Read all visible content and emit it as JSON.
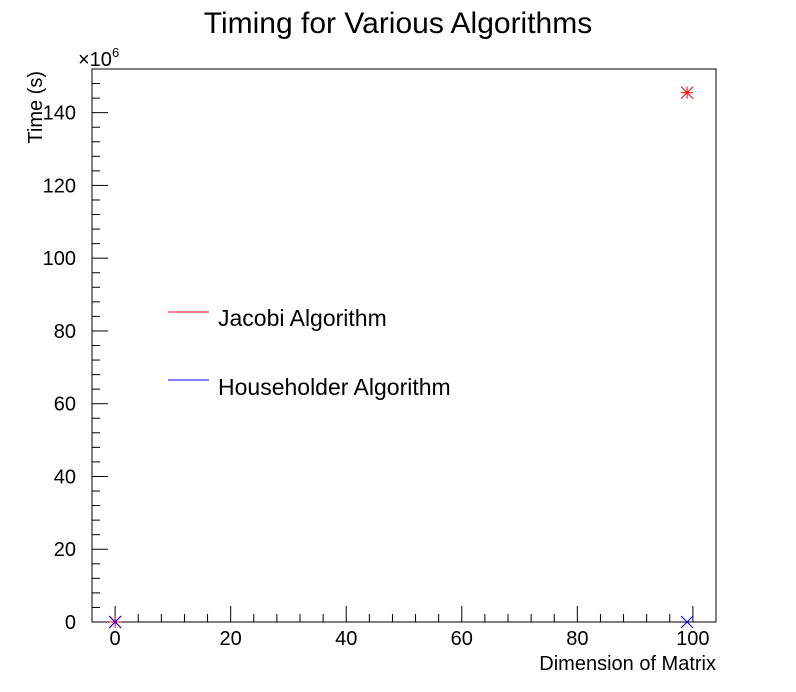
{
  "chart_data": {
    "type": "scatter",
    "title": "Timing for Various Algorithms",
    "xlabel": "Dimension of Matrix",
    "ylabel": "Time (s)",
    "y_exponent_base": "×10",
    "y_exponent_power": "6",
    "xlim": [
      -4,
      104
    ],
    "ylim": [
      0,
      152
    ],
    "x_ticks": [
      0,
      20,
      40,
      60,
      80,
      100
    ],
    "y_ticks": [
      0,
      20,
      40,
      60,
      80,
      100,
      120,
      140
    ],
    "legend_position": "center-left",
    "series": [
      {
        "name": "Jacobi Algorithm",
        "color": "#ff0000",
        "marker": "asterisk",
        "points": [
          {
            "x": 0,
            "y": 0
          },
          {
            "x": 99,
            "y": 145.5
          }
        ]
      },
      {
        "name": "Householder Algorithm",
        "color": "#0000ff",
        "marker": "x",
        "points": [
          {
            "x": 0,
            "y": 0
          },
          {
            "x": 99,
            "y": 0
          }
        ]
      }
    ]
  }
}
